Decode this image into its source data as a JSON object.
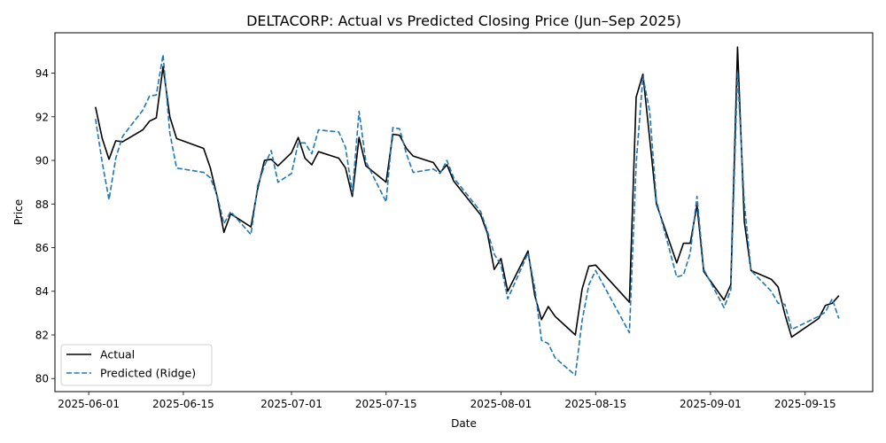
{
  "chart_data": {
    "type": "line",
    "title": "DELTACORP: Actual vs Predicted Closing Price (Jun–Sep 2025)",
    "xlabel": "Date",
    "ylabel": "Price",
    "xlim": [
      "2025-05-27",
      "2025-09-25"
    ],
    "ylim": [
      79.4,
      95.85
    ],
    "x_ticks": [
      "2025-06-01",
      "2025-06-15",
      "2025-07-01",
      "2025-07-15",
      "2025-08-01",
      "2025-08-15",
      "2025-09-01",
      "2025-09-15"
    ],
    "y_ticks": [
      80,
      82,
      84,
      86,
      88,
      90,
      92,
      94
    ],
    "grid": false,
    "legend_position": "lower-left",
    "series": [
      {
        "name": "Actual",
        "color": "#000000",
        "style": "solid",
        "points": [
          [
            "2025-06-02",
            92.45
          ],
          [
            "2025-06-03",
            91.0
          ],
          [
            "2025-06-04",
            90.05
          ],
          [
            "2025-06-05",
            90.9
          ],
          [
            "2025-06-06",
            90.85
          ],
          [
            "2025-06-09",
            91.4
          ],
          [
            "2025-06-10",
            91.8
          ],
          [
            "2025-06-11",
            91.95
          ],
          [
            "2025-06-12",
            94.3
          ],
          [
            "2025-06-13",
            92.0
          ],
          [
            "2025-06-14",
            91.0
          ],
          [
            "2025-06-18",
            90.55
          ],
          [
            "2025-06-19",
            89.65
          ],
          [
            "2025-06-20",
            88.35
          ],
          [
            "2025-06-21",
            86.7
          ],
          [
            "2025-06-22",
            87.55
          ],
          [
            "2025-06-25",
            86.95
          ],
          [
            "2025-06-26",
            88.7
          ],
          [
            "2025-06-27",
            90.0
          ],
          [
            "2025-06-28",
            90.05
          ],
          [
            "2025-06-29",
            89.75
          ],
          [
            "2025-07-01",
            90.35
          ],
          [
            "2025-07-02",
            91.05
          ],
          [
            "2025-07-03",
            90.1
          ],
          [
            "2025-07-04",
            89.8
          ],
          [
            "2025-07-05",
            90.4
          ],
          [
            "2025-07-08",
            90.1
          ],
          [
            "2025-07-09",
            89.65
          ],
          [
            "2025-07-10",
            88.35
          ],
          [
            "2025-07-11",
            91.05
          ],
          [
            "2025-07-12",
            89.75
          ],
          [
            "2025-07-15",
            89.0
          ],
          [
            "2025-07-16",
            91.2
          ],
          [
            "2025-07-17",
            91.15
          ],
          [
            "2025-07-18",
            90.55
          ],
          [
            "2025-07-19",
            90.2
          ],
          [
            "2025-07-22",
            89.9
          ],
          [
            "2025-07-23",
            89.45
          ],
          [
            "2025-07-24",
            89.8
          ],
          [
            "2025-07-25",
            89.05
          ],
          [
            "2025-07-29",
            87.5
          ],
          [
            "2025-07-30",
            86.65
          ],
          [
            "2025-07-31",
            85.0
          ],
          [
            "2025-08-01",
            85.5
          ],
          [
            "2025-08-02",
            84.0
          ],
          [
            "2025-08-05",
            85.85
          ],
          [
            "2025-08-06",
            83.8
          ],
          [
            "2025-08-07",
            82.7
          ],
          [
            "2025-08-08",
            83.3
          ],
          [
            "2025-08-09",
            82.85
          ],
          [
            "2025-08-12",
            82.0
          ],
          [
            "2025-08-13",
            84.1
          ],
          [
            "2025-08-14",
            85.15
          ],
          [
            "2025-08-15",
            85.2
          ],
          [
            "2025-08-20",
            83.5
          ],
          [
            "2025-08-21",
            92.9
          ],
          [
            "2025-08-22",
            93.95
          ],
          [
            "2025-08-23",
            91.0
          ],
          [
            "2025-08-24",
            88.0
          ],
          [
            "2025-08-27",
            85.3
          ],
          [
            "2025-08-28",
            86.2
          ],
          [
            "2025-08-29",
            86.2
          ],
          [
            "2025-08-30",
            87.95
          ],
          [
            "2025-08-31",
            84.9
          ],
          [
            "2025-09-03",
            83.6
          ],
          [
            "2025-09-04",
            84.3
          ],
          [
            "2025-09-05",
            95.2
          ],
          [
            "2025-09-06",
            87.2
          ],
          [
            "2025-09-07",
            84.95
          ],
          [
            "2025-09-10",
            84.55
          ],
          [
            "2025-09-11",
            84.2
          ],
          [
            "2025-09-12",
            82.95
          ],
          [
            "2025-09-13",
            81.9
          ],
          [
            "2025-09-17",
            82.75
          ],
          [
            "2025-09-18",
            83.35
          ],
          [
            "2025-09-19",
            83.45
          ],
          [
            "2025-09-20",
            83.8
          ]
        ]
      },
      {
        "name": "Predicted (Ridge)",
        "color": "#1f77b4",
        "style": "dashed",
        "points": [
          [
            "2025-06-02",
            91.9
          ],
          [
            "2025-06-03",
            89.9
          ],
          [
            "2025-06-04",
            88.2
          ],
          [
            "2025-06-05",
            90.1
          ],
          [
            "2025-06-06",
            91.1
          ],
          [
            "2025-06-09",
            92.3
          ],
          [
            "2025-06-10",
            92.95
          ],
          [
            "2025-06-11",
            93.0
          ],
          [
            "2025-06-12",
            94.85
          ],
          [
            "2025-06-13",
            91.25
          ],
          [
            "2025-06-14",
            89.65
          ],
          [
            "2025-06-18",
            89.45
          ],
          [
            "2025-06-19",
            89.2
          ],
          [
            "2025-06-20",
            88.4
          ],
          [
            "2025-06-21",
            87.1
          ],
          [
            "2025-06-22",
            87.65
          ],
          [
            "2025-06-25",
            86.6
          ],
          [
            "2025-06-26",
            88.85
          ],
          [
            "2025-06-27",
            89.75
          ],
          [
            "2025-06-28",
            90.45
          ],
          [
            "2025-06-29",
            89.0
          ],
          [
            "2025-07-01",
            89.4
          ],
          [
            "2025-07-02",
            90.8
          ],
          [
            "2025-07-03",
            90.8
          ],
          [
            "2025-07-04",
            90.3
          ],
          [
            "2025-07-05",
            91.4
          ],
          [
            "2025-07-08",
            91.3
          ],
          [
            "2025-07-09",
            90.6
          ],
          [
            "2025-07-10",
            88.5
          ],
          [
            "2025-07-11",
            92.25
          ],
          [
            "2025-07-12",
            89.95
          ],
          [
            "2025-07-15",
            88.1
          ],
          [
            "2025-07-16",
            91.5
          ],
          [
            "2025-07-17",
            91.45
          ],
          [
            "2025-07-18",
            90.3
          ],
          [
            "2025-07-19",
            89.45
          ],
          [
            "2025-07-22",
            89.6
          ],
          [
            "2025-07-23",
            89.4
          ],
          [
            "2025-07-24",
            90.0
          ],
          [
            "2025-07-25",
            89.2
          ],
          [
            "2025-07-29",
            87.65
          ],
          [
            "2025-07-30",
            86.75
          ],
          [
            "2025-07-31",
            85.7
          ],
          [
            "2025-08-01",
            85.2
          ],
          [
            "2025-08-02",
            83.65
          ],
          [
            "2025-08-05",
            85.75
          ],
          [
            "2025-08-06",
            84.15
          ],
          [
            "2025-08-07",
            81.75
          ],
          [
            "2025-08-08",
            81.6
          ],
          [
            "2025-08-09",
            80.95
          ],
          [
            "2025-08-12",
            80.15
          ],
          [
            "2025-08-13",
            82.65
          ],
          [
            "2025-08-14",
            84.3
          ],
          [
            "2025-08-15",
            84.95
          ],
          [
            "2025-08-20",
            82.1
          ],
          [
            "2025-08-21",
            89.85
          ],
          [
            "2025-08-22",
            93.85
          ],
          [
            "2025-08-23",
            92.25
          ],
          [
            "2025-08-24",
            88.15
          ],
          [
            "2025-08-27",
            84.65
          ],
          [
            "2025-08-28",
            84.75
          ],
          [
            "2025-08-29",
            85.75
          ],
          [
            "2025-08-30",
            88.35
          ],
          [
            "2025-08-31",
            85.0
          ],
          [
            "2025-09-03",
            83.25
          ],
          [
            "2025-09-04",
            84.05
          ],
          [
            "2025-09-05",
            94.05
          ],
          [
            "2025-09-06",
            88.05
          ],
          [
            "2025-09-07",
            84.95
          ],
          [
            "2025-09-10",
            84.0
          ],
          [
            "2025-09-11",
            83.45
          ],
          [
            "2025-09-12",
            83.4
          ],
          [
            "2025-09-13",
            82.25
          ],
          [
            "2025-09-17",
            82.85
          ],
          [
            "2025-09-18",
            83.05
          ],
          [
            "2025-09-19",
            83.65
          ],
          [
            "2025-09-20",
            82.75
          ]
        ]
      }
    ]
  }
}
